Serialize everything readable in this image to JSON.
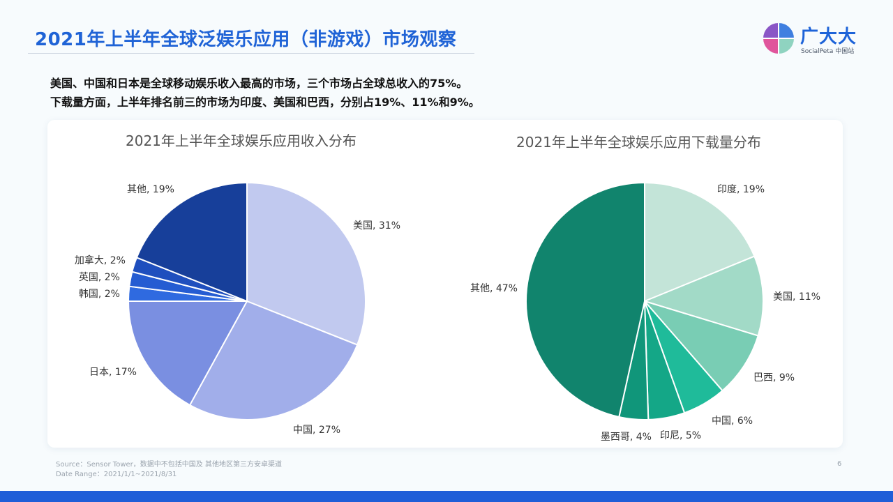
{
  "header": {
    "title": "2021年上半年全球泛娱乐应用（非游戏）市场观察"
  },
  "logo": {
    "brand": "广大大",
    "sub": "SocialPeta 中国站"
  },
  "summary": {
    "line1": "美国、中国和日本是全球移动娱乐收入最高的市场，三个市场占全球总收入的75%。",
    "line2": "下载量方面，上半年排名前三的市场为印度、美国和巴西，分别占19%、11%和9%。"
  },
  "chart_data": [
    {
      "type": "pie",
      "title": "2021年上半年全球娱乐应用收入分布",
      "slices": [
        {
          "label": "美国",
          "value": 31,
          "display": "美国, 31%",
          "color": "#c1c9ef"
        },
        {
          "label": "中国",
          "value": 27,
          "display": "中国, 27%",
          "color": "#a1aeea"
        },
        {
          "label": "日本",
          "value": 17,
          "display": "日本, 17%",
          "color": "#7a8fe1"
        },
        {
          "label": "韩国",
          "value": 2,
          "display": "韩国, 2%",
          "color": "#2f6ae0"
        },
        {
          "label": "英国",
          "value": 2,
          "display": "英国, 2%",
          "color": "#255cd2"
        },
        {
          "label": "加拿大",
          "value": 2,
          "display": "加拿大, 2%",
          "color": "#1f4fbe"
        },
        {
          "label": "其他",
          "value": 19,
          "display": "其他, 19%",
          "color": "#173f9a"
        }
      ]
    },
    {
      "type": "pie",
      "title": "2021年上半年全球娱乐应用下载量分布",
      "slices": [
        {
          "label": "印度",
          "value": 19,
          "display": "印度, 19%",
          "color": "#c3e4d8"
        },
        {
          "label": "美国",
          "value": 11,
          "display": "美国, 11%",
          "color": "#a2dac7"
        },
        {
          "label": "巴西",
          "value": 9,
          "display": "巴西, 9%",
          "color": "#79cdb4"
        },
        {
          "label": "中国",
          "value": 6,
          "display": "中国, 6%",
          "color": "#1fbb9a"
        },
        {
          "label": "印尼",
          "value": 5,
          "display": "印尼, 5%",
          "color": "#14a787"
        },
        {
          "label": "墨西哥",
          "value": 4,
          "display": "墨西哥, 4%",
          "color": "#10967a"
        },
        {
          "label": "其他",
          "value": 47,
          "display": "其他, 47%",
          "color": "#11846d"
        }
      ]
    }
  ],
  "footer": {
    "source": "Source：Sensor Tower，数据中不包括中国及 其他地区第三方安卓渠道",
    "date_range": "Date Range：2021/1/1~2021/8/31",
    "page": "6"
  }
}
